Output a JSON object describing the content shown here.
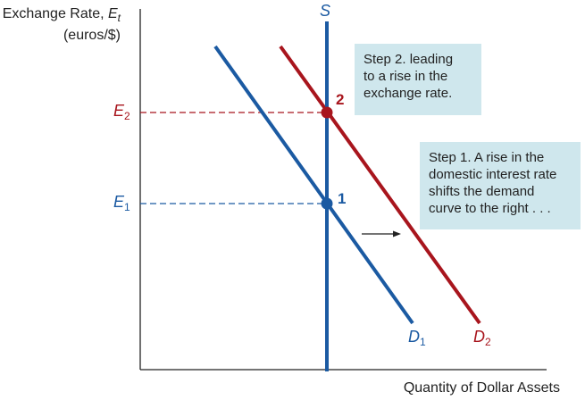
{
  "y_axis_label": {
    "line1_text": "Exchange Rate, ",
    "line1_symbol": "E",
    "line1_subscript": "t",
    "line2": "(euros/$)"
  },
  "x_axis_label": "Quantity of Dollar Assets",
  "supply_label": "S",
  "demand_labels": {
    "d1": {
      "letter": "D",
      "sub": "1"
    },
    "d2": {
      "letter": "D",
      "sub": "2"
    }
  },
  "equilibrium_labels": {
    "e1": {
      "letter": "E",
      "sub": "1"
    },
    "e2": {
      "letter": "E",
      "sub": "2"
    }
  },
  "points": {
    "p1": "1",
    "p2": "2"
  },
  "annotations": {
    "step2": "Step 2. leading\nto a rise in the\nexchange rate.",
    "step1": "Step 1. A rise in the\ndomestic interest rate\nshifts the demand\ncurve to the right . . ."
  },
  "colors": {
    "d1": "#1b5aa2",
    "d2": "#a8151d",
    "supply": "#1b5aa2",
    "box": "#cfe7ed",
    "axis": "#222222"
  }
}
